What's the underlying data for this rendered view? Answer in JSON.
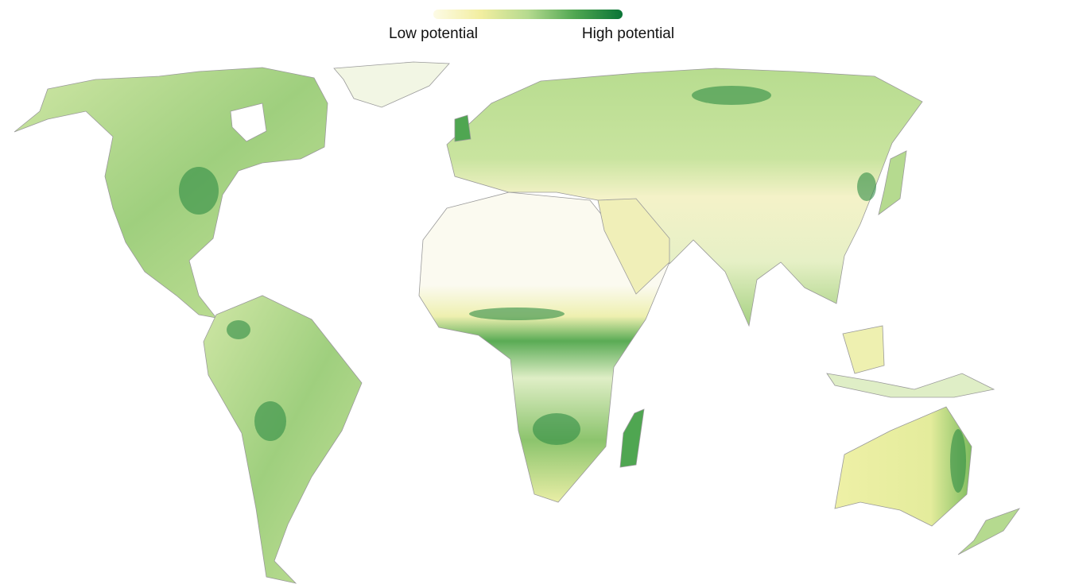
{
  "legend": {
    "low_label": "Low potential",
    "high_label": "High potential",
    "colors": [
      "#fdfbe6",
      "#f2eea0",
      "#b5da8f",
      "#4fa651",
      "#0a7436"
    ]
  }
}
